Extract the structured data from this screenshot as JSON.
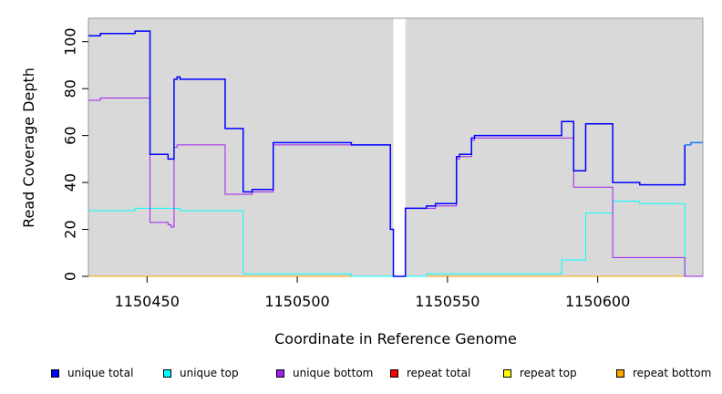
{
  "chart_data": {
    "type": "line",
    "step": true,
    "xlabel": "Coordinate in Reference Genome",
    "ylabel": "Read Coverage Depth",
    "xlim": [
      1150430.5,
      1150635
    ],
    "ylim": [
      0,
      110
    ],
    "x_ticks": [
      1150450,
      1150500,
      1150550,
      1150600
    ],
    "y_ticks": [
      0,
      20,
      40,
      60,
      80,
      100
    ],
    "grid": false,
    "panel_background": "#d9d9d9",
    "gap_region": [
      1150532,
      1150536
    ],
    "legend_position": "bottom",
    "legend": [
      {
        "label": "unique total",
        "color": "#0000ff"
      },
      {
        "label": "unique top",
        "color": "#00ffff"
      },
      {
        "label": "unique bottom",
        "color": "#a020f0"
      },
      {
        "label": "repeat total",
        "color": "#ff0000"
      },
      {
        "label": "repeat top",
        "color": "#ffff00"
      },
      {
        "label": "repeat bottom",
        "color": "#ffa500"
      }
    ],
    "series": [
      {
        "name": "unique total",
        "color": "#0000ff",
        "x": [
          1150430.5,
          1150434.5,
          1150434.5,
          1150446,
          1150446,
          1150451,
          1150451,
          1150457,
          1150457,
          1150459,
          1150459,
          1150460,
          1150460,
          1150461,
          1150461,
          1150476,
          1150476,
          1150482,
          1150482,
          1150485,
          1150485,
          1150492,
          1150492,
          1150518,
          1150518,
          1150531,
          1150531,
          1150532,
          1150532,
          1150536,
          1150536,
          1150543,
          1150543,
          1150546,
          1150546,
          1150553,
          1150553,
          1150554,
          1150554,
          1150558,
          1150558,
          1150559,
          1150559,
          1150588,
          1150588,
          1150592,
          1150592,
          1150596,
          1150596,
          1150605,
          1150605,
          1150614,
          1150614,
          1150629,
          1150629
        ],
        "y": [
          102.5,
          102.5,
          103.5,
          103.5,
          104.5,
          104.5,
          52,
          52,
          50,
          50,
          84,
          84,
          85,
          85,
          84,
          84,
          63,
          63,
          36,
          36,
          37,
          37,
          57,
          57,
          56,
          56,
          20,
          20,
          0,
          0,
          29,
          29,
          30,
          30,
          31,
          31,
          51,
          51,
          52,
          52,
          59,
          59,
          60,
          60,
          66,
          66,
          45,
          45,
          65,
          65,
          40,
          40,
          39,
          39,
          56
        ]
      },
      {
        "name": "unique total",
        "color": "#1e7bff",
        "x": [
          1150629,
          1150631,
          1150631,
          1150635
        ],
        "y": [
          56,
          56,
          57,
          57
        ]
      },
      {
        "name": "unique top",
        "color": "#00ffff",
        "x": [
          1150430.5,
          1150446,
          1150446,
          1150461,
          1150461,
          1150482,
          1150482,
          1150518,
          1150518,
          1150543,
          1150543,
          1150588,
          1150588,
          1150596,
          1150596,
          1150605,
          1150605,
          1150614,
          1150614,
          1150629,
          1150629,
          1150635
        ],
        "y": [
          28,
          28,
          29,
          29,
          28,
          28,
          1,
          1,
          0,
          0,
          1,
          1,
          7,
          7,
          27,
          27,
          32,
          32,
          31,
          31,
          0,
          0
        ]
      },
      {
        "name": "unique bottom",
        "color": "#a020f0",
        "x": [
          1150430.5,
          1150434.5,
          1150434.5,
          1150451,
          1150451,
          1150457,
          1150457,
          1150458,
          1150458,
          1150459,
          1150459,
          1150460,
          1150460,
          1150476,
          1150476,
          1150485,
          1150485,
          1150492,
          1150492,
          1150531,
          1150531,
          1150532,
          1150532,
          1150536,
          1150536,
          1150543,
          1150543,
          1150546,
          1150546,
          1150553,
          1150553,
          1150554,
          1150554,
          1150558,
          1150558,
          1150559,
          1150559,
          1150592,
          1150592,
          1150605,
          1150605,
          1150629,
          1150629,
          1150635
        ],
        "y": [
          75,
          75,
          76,
          76,
          23,
          23,
          22,
          22,
          21,
          21,
          55,
          55,
          56,
          56,
          35,
          35,
          36,
          36,
          56,
          56,
          20,
          20,
          0,
          0,
          29,
          29,
          29,
          29,
          30,
          30,
          50,
          50,
          51,
          51,
          58,
          58,
          59,
          59,
          38,
          38,
          8,
          8,
          0,
          0
        ]
      },
      {
        "name": "repeat bottom",
        "color": "#ffa500",
        "x": [
          1150430.5,
          1150635
        ],
        "y": [
          0,
          0
        ]
      }
    ]
  }
}
